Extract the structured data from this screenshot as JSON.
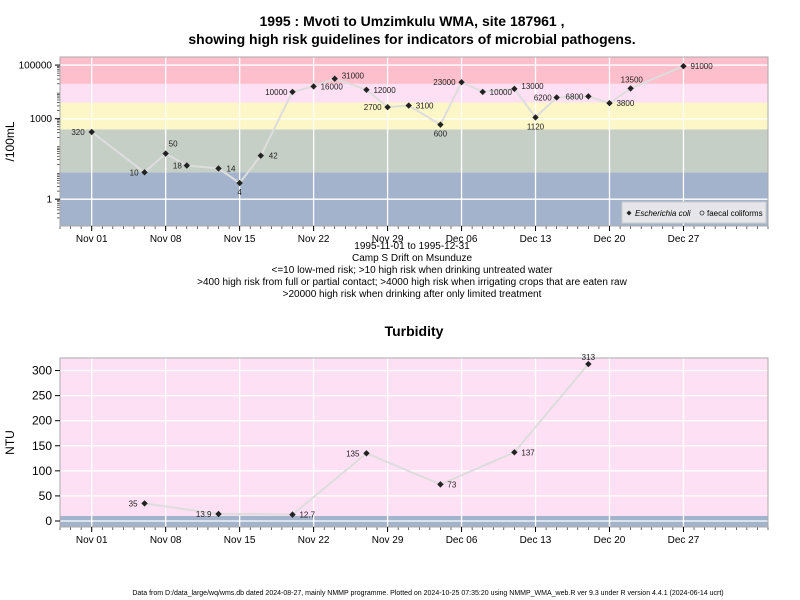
{
  "chart_data": [
    {
      "type": "line",
      "title": "1995 : Mvoti to Umzimkulu WMA, site 187961 ,",
      "subtitle": "showing high risk guidelines for indicators of microbial pathogens.",
      "ylabel": "/100mL",
      "yscale": "log10",
      "ylim": [
        0.1,
        200000
      ],
      "xlim": [
        "1995-10-29",
        "1996-01-04"
      ],
      "x_ticks": [
        {
          "date": "1995-11-01",
          "label": "Nov 01"
        },
        {
          "date": "1995-11-08",
          "label": "Nov 08"
        },
        {
          "date": "1995-11-15",
          "label": "Nov 15"
        },
        {
          "date": "1995-11-22",
          "label": "Nov 22"
        },
        {
          "date": "1995-11-29",
          "label": "Nov 29"
        },
        {
          "date": "1995-12-06",
          "label": "Dec 06"
        },
        {
          "date": "1995-12-13",
          "label": "Dec 13"
        },
        {
          "date": "1995-12-20",
          "label": "Dec 20"
        },
        {
          "date": "1995-12-27",
          "label": "Dec 27"
        }
      ],
      "y_ticks": [
        {
          "value": 1,
          "label": "1"
        },
        {
          "value": 1000,
          "label": "1000"
        },
        {
          "value": 100000,
          "label": "100000"
        }
      ],
      "bands": [
        {
          "from": 0.1,
          "to": 10,
          "color": "#a3b3cc"
        },
        {
          "from": 10,
          "to": 400,
          "color": "#c5cfc6"
        },
        {
          "from": 400,
          "to": 4000,
          "color": "#fdf6c7"
        },
        {
          "from": 4000,
          "to": 20000,
          "color": "#fde0f3"
        },
        {
          "from": 20000,
          "to": 200000,
          "color": "#fdbfcb"
        }
      ],
      "x": [
        "1995-11-01",
        "1995-11-06",
        "1995-11-08",
        "1995-11-10",
        "1995-11-13",
        "1995-11-15",
        "1995-11-17",
        "1995-11-20",
        "1995-11-22",
        "1995-11-24",
        "1995-11-27",
        "1995-11-29",
        "1995-12-01",
        "1995-12-04",
        "1995-12-06",
        "1995-12-08",
        "1995-12-11",
        "1995-12-13",
        "1995-12-15",
        "1995-12-18",
        "1995-12-20",
        "1995-12-22",
        "1995-12-27"
      ],
      "series": [
        {
          "name": "Escherichia coli",
          "values": [
            320,
            10,
            50,
            18,
            14,
            4,
            42,
            10000,
            16000,
            31000,
            12000,
            2700,
            3100,
            600,
            23000,
            10000,
            13000,
            1120,
            6200,
            6800,
            3800,
            13500,
            91000
          ],
          "labels": [
            "320",
            "10",
            "50",
            "18",
            "14",
            "4",
            "42",
            "10000",
            "16000",
            "31000",
            "12000",
            "2700",
            "3100",
            "600",
            "23000",
            "10000",
            "13000",
            "1120",
            "6200",
            "6800",
            "3800",
            "13500",
            "91000"
          ]
        }
      ],
      "legend": {
        "position": "bottom-right",
        "entries": [
          "Escherichia coli",
          "faecal coliforms"
        ]
      },
      "grid": true,
      "notes": [
        "1995-11-01 to 1995-12-31",
        "Camp S Drift on Msunduze",
        "<=10 low-med risk; >10 high risk when drinking untreated water",
        ">400 high risk from full or partial contact; >4000 high risk when irrigating crops that are eaten raw",
        ">20000 high risk when drinking after only limited treatment"
      ],
      "colors": {
        "line": "#dddddd",
        "marker": "#222222",
        "grid": "#ffffff",
        "frame": "#aaaaaa"
      }
    },
    {
      "type": "line",
      "title": "Turbidity",
      "ylabel": "NTU",
      "ylim": [
        -12,
        325
      ],
      "xlim": [
        "1995-10-29",
        "1996-01-04"
      ],
      "x_ticks": [
        {
          "date": "1995-11-01",
          "label": "Nov 01"
        },
        {
          "date": "1995-11-08",
          "label": "Nov 08"
        },
        {
          "date": "1995-11-15",
          "label": "Nov 15"
        },
        {
          "date": "1995-11-22",
          "label": "Nov 22"
        },
        {
          "date": "1995-11-29",
          "label": "Nov 29"
        },
        {
          "date": "1995-12-06",
          "label": "Dec 06"
        },
        {
          "date": "1995-12-13",
          "label": "Dec 13"
        },
        {
          "date": "1995-12-20",
          "label": "Dec 20"
        },
        {
          "date": "1995-12-27",
          "label": "Dec 27"
        }
      ],
      "y_ticks": [
        {
          "value": 0,
          "label": "0"
        },
        {
          "value": 50,
          "label": "50"
        },
        {
          "value": 100,
          "label": "100"
        },
        {
          "value": 150,
          "label": "150"
        },
        {
          "value": 200,
          "label": "200"
        },
        {
          "value": 250,
          "label": "250"
        },
        {
          "value": 300,
          "label": "300"
        }
      ],
      "bands": [
        {
          "from": -12,
          "to": 10,
          "color": "#a3b3cc"
        },
        {
          "from": 10,
          "to": 325,
          "color": "#fde0f3"
        }
      ],
      "x": [
        "1995-11-06",
        "1995-11-13",
        "1995-11-20",
        "1995-11-27",
        "1995-12-04",
        "1995-12-11",
        "1995-12-18"
      ],
      "series": [
        {
          "values": [
            35,
            13.9,
            12.7,
            135,
            73,
            137,
            313
          ],
          "labels": [
            "35",
            "13.9",
            "12.7",
            "135",
            "73",
            "137",
            "313"
          ]
        }
      ],
      "grid": true,
      "colors": {
        "line": "#dddddd",
        "marker": "#222222",
        "grid": "#ffffff",
        "frame": "#aaaaaa"
      }
    }
  ],
  "footer": "Data from D:/data_large/wq/wms.db dated 2024-08-27, mainly NMMP programme. Plotted on 2024-10-25 07:35:20 using NMMP_WMA_web.R ver 9.3 under R version 4.4.1 (2024-06-14 ucrt)"
}
